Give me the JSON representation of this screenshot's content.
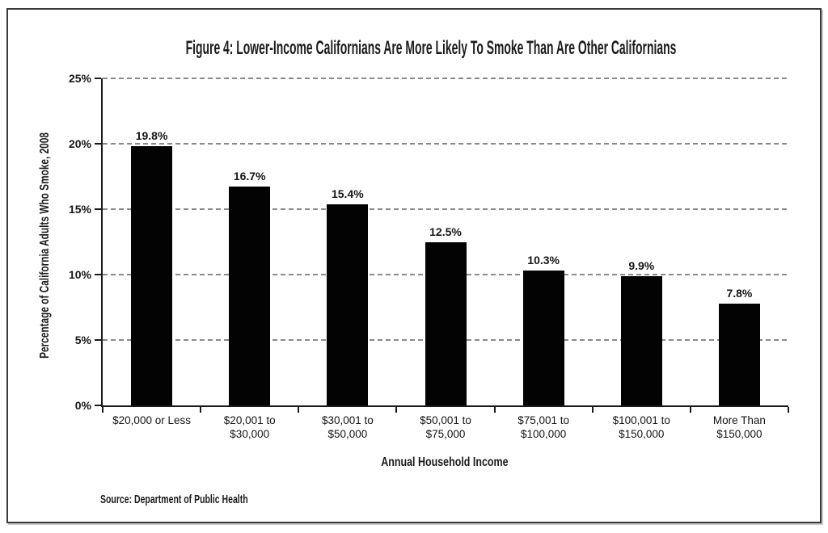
{
  "window": {
    "background": "#ffffff",
    "frame_border_color": "#383838",
    "frame_shadow_color": "#c9c9c9"
  },
  "chart_data": {
    "type": "bar",
    "title": "Figure 4: Lower-Income Californians Are More Likely To Smoke Than Are Other Californians",
    "xlabel": "Annual Household Income",
    "ylabel": "Percentage of California Adults Who Smoke, 2008",
    "source": "Source: Department of Public Health",
    "categories": [
      "$20,000 or Less",
      "$20,001 to\n$30,000",
      "$30,001 to\n$50,000",
      "$50,001 to\n$75,000",
      "$75,001 to\n$100,000",
      "$100,001 to\n$150,000",
      "More Than\n$150,000"
    ],
    "values": [
      19.8,
      16.7,
      15.4,
      12.5,
      10.3,
      9.9,
      7.8
    ],
    "value_labels": [
      "19.8%",
      "16.7%",
      "15.4%",
      "12.5%",
      "10.3%",
      "9.9%",
      "7.8%"
    ],
    "ylim": [
      0,
      25
    ],
    "ytick_step": 5,
    "ytick_labels": [
      "0%",
      "5%",
      "10%",
      "15%",
      "20%",
      "25%"
    ],
    "grid": "horizontal-dashed",
    "legend": "none",
    "bar_color": "#030303",
    "gridline_color": "#8a8a8a",
    "axis_color": "#1a1a1a"
  }
}
